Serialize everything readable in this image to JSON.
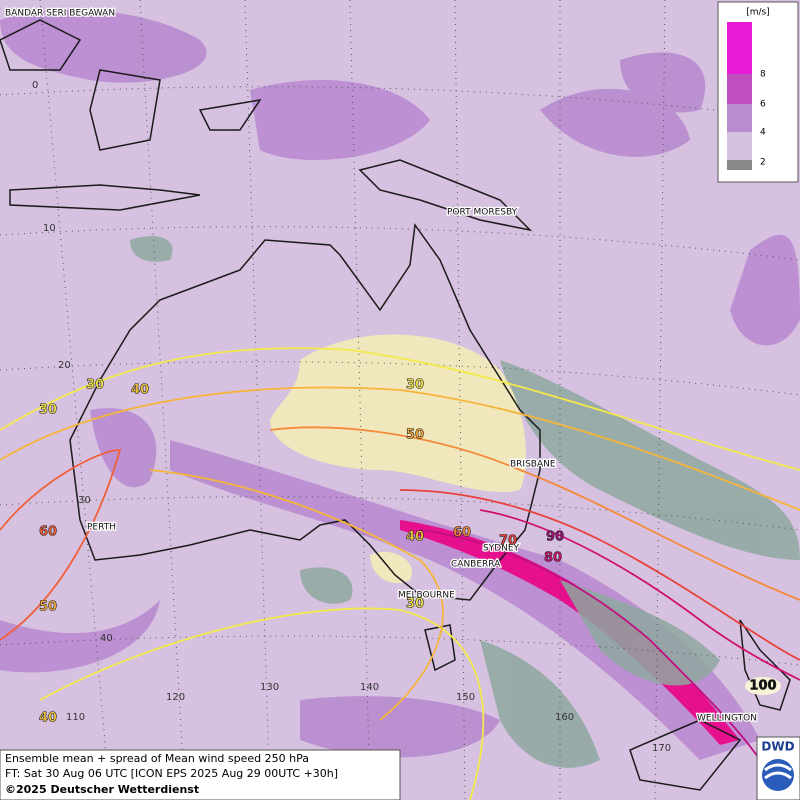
{
  "legend": {
    "unit": "[m/s]",
    "levels": [
      "2",
      "4",
      "6",
      "8"
    ]
  },
  "places": [
    "BANDAR SERI BEGAWAN",
    "PORT MORESBY",
    "BRISBANE",
    "PERTH",
    "SYDNEY",
    "CANBERRA",
    "MELBOURNE",
    "WELLINGTON"
  ],
  "latitudes": [
    "0",
    "10",
    "20",
    "30",
    "40"
  ],
  "longitudes": [
    "110",
    "120",
    "130",
    "140",
    "150",
    "160",
    "170"
  ],
  "contour_labels": [
    "30",
    "40",
    "30",
    "30",
    "50",
    "60",
    "40",
    "60",
    "70",
    "90",
    "80",
    "50",
    "30",
    "40",
    "100"
  ],
  "footer": {
    "line1": "Ensemble mean + spread of Mean wind speed 250 hPa",
    "line2": "FT: Sat 30 Aug 06 UTC [ICON EPS 2025 Aug 29 00UTC +30h]",
    "copyright": "©2025 Deutscher Wetterdienst"
  },
  "logo": "DWD"
}
